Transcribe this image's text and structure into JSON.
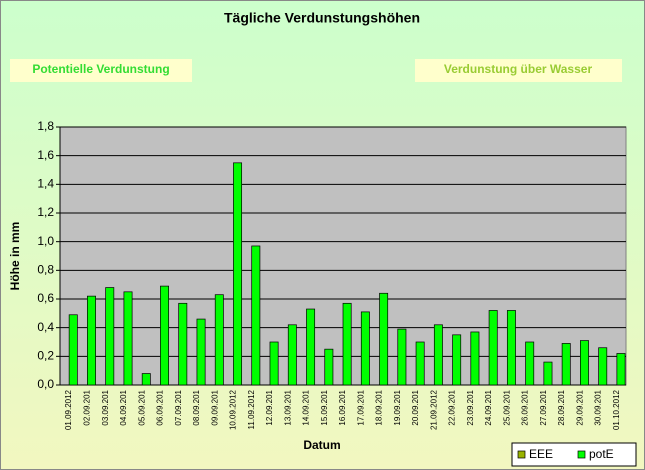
{
  "chart_data": {
    "type": "bar",
    "title": "Tägliche Verdunstungshöhen",
    "annotations": [
      "Potentielle Verdunstung",
      "Verdunstung über Wasser"
    ],
    "x_label": "Datum",
    "y_label": "Höhe in mm",
    "categories": [
      "01.09.2012",
      "02.09.201",
      "03.09.201",
      "04.09.201",
      "05.09.201",
      "06.09.201",
      "07.09.201",
      "08.09.201",
      "09.09.201",
      "10.09.2012",
      "11.09.2012",
      "12.09.201",
      "13.09.201",
      "14.09.201",
      "15.09.201",
      "16.09.201",
      "17.09.201",
      "18.09.201",
      "19.09.201",
      "20.09.201",
      "21.09.2012",
      "22.09.201",
      "23.09.201",
      "24.09.201",
      "25.09.201",
      "26.09.201",
      "27.09.201",
      "28.09.201",
      "29.09.201",
      "30.09.201",
      "01.10.2012"
    ],
    "series": [
      {
        "name": "EEE",
        "color": "#99b300",
        "values": [
          null,
          null,
          null,
          null,
          null,
          null,
          null,
          null,
          null,
          null,
          null,
          null,
          null,
          null,
          null,
          null,
          null,
          null,
          null,
          null,
          null,
          null,
          null,
          null,
          null,
          null,
          null,
          null,
          null,
          null,
          null
        ]
      },
      {
        "name": "potE",
        "color": "#00ff00",
        "values": [
          0.49,
          0.62,
          0.68,
          0.65,
          0.08,
          0.69,
          0.57,
          0.46,
          0.63,
          1.55,
          0.97,
          0.3,
          0.42,
          0.53,
          0.25,
          0.57,
          0.51,
          0.64,
          0.39,
          0.3,
          0.42,
          0.35,
          0.37,
          0.52,
          0.52,
          0.3,
          0.16,
          0.29,
          0.31,
          0.26,
          0.22
        ]
      }
    ],
    "ylim": [
      0,
      1.8
    ],
    "yticks": [
      {
        "value": 0,
        "label": "0,0"
      },
      {
        "value": 0.2,
        "label": "0,2"
      },
      {
        "value": 0.4,
        "label": "0,4"
      },
      {
        "value": 0.6,
        "label": "0,6"
      },
      {
        "value": 0.8,
        "label": "0,8"
      },
      {
        "value": 1.0,
        "label": "1,0"
      },
      {
        "value": 1.2,
        "label": "1,2"
      },
      {
        "value": 1.4,
        "label": "1,4"
      },
      {
        "value": 1.6,
        "label": "1,6"
      },
      {
        "value": 1.8,
        "label": "1,8"
      }
    ],
    "grid": true,
    "legend": "bottom-right"
  }
}
